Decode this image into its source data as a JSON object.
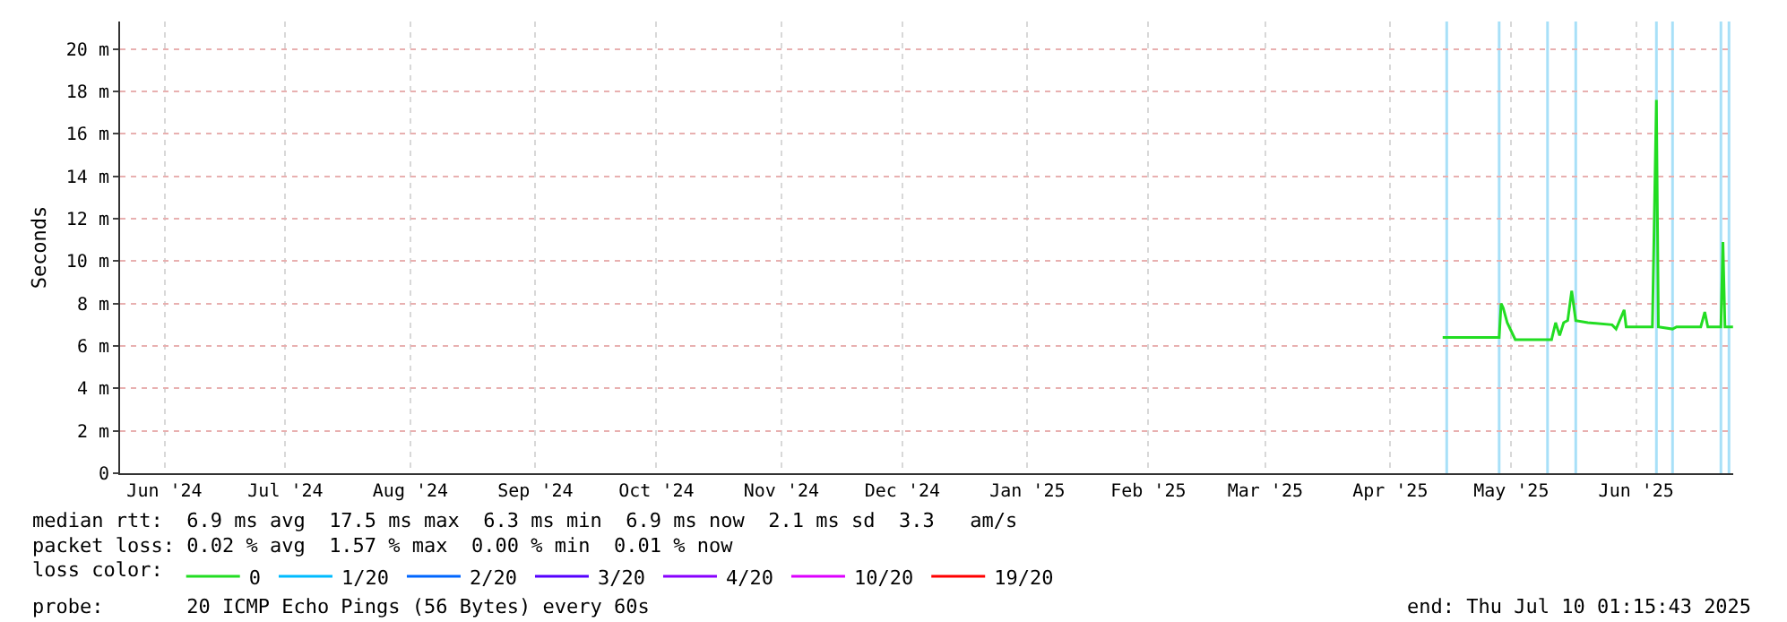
{
  "chart_data": {
    "type": "line",
    "ylabel": "Seconds",
    "xlim": [
      "2024-06-05",
      "2025-07-10T01:15"
    ],
    "xticks": [
      {
        "value": "2024-06-16",
        "label": "Jun '24"
      },
      {
        "value": "2024-07-16",
        "label": "Jul '24"
      },
      {
        "value": "2024-08-16",
        "label": "Aug '24"
      },
      {
        "value": "2024-09-16",
        "label": "Sep '24"
      },
      {
        "value": "2024-10-16",
        "label": "Oct '24"
      },
      {
        "value": "2024-11-16",
        "label": "Nov '24"
      },
      {
        "value": "2024-12-16",
        "label": "Dec '24"
      },
      {
        "value": "2025-01-16",
        "label": "Jan '25"
      },
      {
        "value": "2025-02-15",
        "label": "Feb '25"
      },
      {
        "value": "2025-03-16",
        "label": "Mar '25"
      },
      {
        "value": "2025-04-16",
        "label": "Apr '25"
      },
      {
        "value": "2025-05-16",
        "label": "May '25"
      },
      {
        "value": "2025-06-16",
        "label": "Jun '25"
      }
    ],
    "ylim": [
      0,
      21.3
    ],
    "yticks": [
      0,
      {
        "value": 2,
        "label": "2 m"
      },
      {
        "value": 4,
        "label": "4 m"
      },
      {
        "value": 6,
        "label": "6 m"
      },
      {
        "value": 8,
        "label": "8 m"
      },
      {
        "value": 10,
        "label": "10 m"
      },
      {
        "value": 12,
        "label": "12 m"
      },
      {
        "value": 14,
        "label": "14 m"
      },
      {
        "value": 16,
        "label": "16 m"
      },
      {
        "value": 18,
        "label": "18 m"
      },
      {
        "value": 20,
        "label": "20 m"
      }
    ],
    "grid": true,
    "legend": "bottom",
    "legend_title": "loss color:",
    "marker": "none",
    "line_style": "solid",
    "x": [
      "2025-04-29",
      "2025-05-13",
      "2025-05-13T12:00",
      "2025-05-14",
      "2025-05-15",
      "2025-05-17",
      "2025-05-26",
      "2025-05-27",
      "2025-05-28",
      "2025-05-29",
      "2025-05-30",
      "2025-05-31",
      "2025-06-01",
      "2025-06-04",
      "2025-06-10",
      "2025-06-11",
      "2025-06-13",
      "2025-06-13T12:00",
      "2025-06-20",
      "2025-06-21",
      "2025-06-21T12:00",
      "2025-06-25",
      "2025-06-26",
      "2025-07-02",
      "2025-07-03",
      "2025-07-03T18:00",
      "2025-07-07",
      "2025-07-07T12:00",
      "2025-07-08",
      "2025-07-10"
    ],
    "series": [
      {
        "name": "0",
        "color": "#22dd22",
        "values": [
          6.4,
          6.4,
          8.0,
          7.8,
          7.1,
          6.3,
          6.3,
          7.1,
          6.5,
          7.1,
          7.2,
          8.6,
          7.2,
          7.1,
          7.0,
          6.8,
          7.7,
          6.9,
          6.9,
          17.6,
          6.9,
          6.8,
          6.9,
          6.9,
          7.6,
          6.9,
          6.9,
          10.9,
          6.9,
          6.9
        ]
      },
      {
        "name": "1/20",
        "color": "#00bbff",
        "values": [
          null,
          null,
          null,
          null,
          null,
          null,
          null,
          null,
          null,
          null,
          null,
          null,
          null,
          null,
          null,
          null,
          null,
          null,
          null,
          null,
          null,
          null,
          null,
          null,
          null,
          null,
          null,
          null,
          null,
          null
        ]
      },
      {
        "name": "2/20",
        "color": "#0066ff",
        "values": [
          null,
          null,
          null,
          null,
          null,
          null,
          null,
          null,
          null,
          null,
          null,
          null,
          null,
          null,
          null,
          null,
          null,
          null,
          null,
          null,
          null,
          null,
          null,
          null,
          null,
          null,
          null,
          null,
          null,
          null
        ]
      },
      {
        "name": "3/20",
        "color": "#5500ff",
        "values": [
          null,
          null,
          null,
          null,
          null,
          null,
          null,
          null,
          null,
          null,
          null,
          null,
          null,
          null,
          null,
          null,
          null,
          null,
          null,
          null,
          null,
          null,
          null,
          null,
          null,
          null,
          null,
          null,
          null,
          null
        ]
      },
      {
        "name": "4/20",
        "color": "#8800ff",
        "values": [
          null,
          null,
          null,
          null,
          null,
          null,
          null,
          null,
          null,
          null,
          null,
          null,
          null,
          null,
          null,
          null,
          null,
          null,
          null,
          null,
          null,
          null,
          null,
          null,
          null,
          null,
          null,
          null,
          null,
          null
        ]
      },
      {
        "name": "10/20",
        "color": "#dd00ff",
        "values": [
          null,
          null,
          null,
          null,
          null,
          null,
          null,
          null,
          null,
          null,
          null,
          null,
          null,
          null,
          null,
          null,
          null,
          null,
          null,
          null,
          null,
          null,
          null,
          null,
          null,
          null,
          null,
          null,
          null,
          null
        ]
      },
      {
        "name": "19/20",
        "color": "#ff0000",
        "values": [
          null,
          null,
          null,
          null,
          null,
          null,
          null,
          null,
          null,
          null,
          null,
          null,
          null,
          null,
          null,
          null,
          null,
          null,
          null,
          null,
          null,
          null,
          null,
          null,
          null,
          null,
          null,
          null,
          null,
          null
        ]
      }
    ],
    "ref_lines": [
      {
        "axis": "x",
        "value": "2025-04-30",
        "color": "#a8e0f8"
      },
      {
        "axis": "x",
        "value": "2025-05-13",
        "color": "#a8e0f8"
      },
      {
        "axis": "x",
        "value": "2025-05-25",
        "color": "#a8e0f8"
      },
      {
        "axis": "x",
        "value": "2025-06-01",
        "color": "#a8e0f8"
      },
      {
        "axis": "x",
        "value": "2025-06-21",
        "color": "#a8e0f8"
      },
      {
        "axis": "x",
        "value": "2025-06-25",
        "color": "#a8e0f8"
      },
      {
        "axis": "x",
        "value": "2025-07-07",
        "color": "#a8e0f8"
      },
      {
        "axis": "x",
        "value": "2025-07-09",
        "color": "#a8e0f8"
      }
    ],
    "annotations": [
      "median rtt:  6.9 ms avg  17.5 ms max  6.3 ms min  6.9 ms now  2.1 ms sd  3.3   am/s",
      "packet loss: 0.02 % avg  1.57 % max  0.00 % min  0.01 % now",
      "probe:       20 ICMP Echo Pings (56 Bytes) every 60s",
      "end: Thu Jul 10 01:15:43 2025"
    ]
  }
}
